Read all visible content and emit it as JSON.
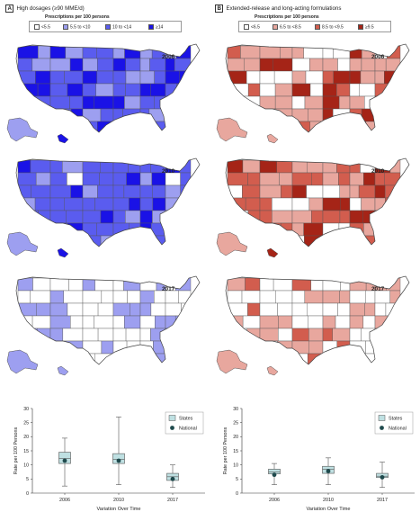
{
  "chart_data": [
    {
      "type": "choropleth-map + box",
      "panel_letter": "A",
      "title": "High dosages (≥90 MME/d)",
      "legend": {
        "title": "Prescriptions per 100 persons",
        "bins": [
          {
            "label": "<5.5",
            "color": "#ffffff"
          },
          {
            "label": "5.5 to <10",
            "color": "#9d9ff0"
          },
          {
            "label": "10 to <14",
            "color": "#5a5cef"
          },
          {
            "label": "≥14",
            "color": "#1a12e6"
          }
        ]
      },
      "maps": [
        {
          "year": "2006",
          "class_mix": [
            0.02,
            0.17,
            0.5,
            0.31
          ]
        },
        {
          "year": "2010",
          "class_mix": [
            0.02,
            0.17,
            0.56,
            0.25
          ]
        },
        {
          "year": "2017",
          "class_mix": [
            0.6,
            0.4,
            0.0,
            0.0
          ]
        }
      ],
      "boxplot": {
        "ylabel": "Rate per 100 Persons",
        "xlabel": "Variation Over Time",
        "categories": [
          "2006",
          "2010",
          "2017"
        ],
        "ylim": [
          0,
          30
        ],
        "yticks": [
          "0",
          "5",
          "10",
          "15",
          "20",
          "25",
          "30"
        ],
        "legend": [
          "States",
          "National"
        ],
        "states": [
          {
            "min": 2.5,
            "q1": 10.5,
            "median": 12.3,
            "q3": 14.5,
            "max": 19.5
          },
          {
            "min": 3.0,
            "q1": 10.5,
            "median": 12.0,
            "q3": 14.0,
            "max": 27.0
          },
          {
            "min": 2.0,
            "q1": 4.5,
            "median": 5.8,
            "q3": 7.0,
            "max": 10.0
          }
        ],
        "national": [
          11.5,
          11.5,
          5.0
        ]
      }
    },
    {
      "type": "choropleth-map + box",
      "panel_letter": "B",
      "title": "Extended-release and long-acting formulations",
      "legend": {
        "title": "Prescriptions per 100 persons",
        "bins": [
          {
            "label": "<6.5",
            "color": "#ffffff"
          },
          {
            "label": "6.5 to <8.5",
            "color": "#e8a79e"
          },
          {
            "label": "8.5 to <9.5",
            "color": "#d25d4e"
          },
          {
            "label": "≥9.5",
            "color": "#a52417"
          }
        ]
      },
      "maps": [
        {
          "year": "2006",
          "class_mix": [
            0.35,
            0.35,
            0.16,
            0.14
          ]
        },
        {
          "year": "2010",
          "class_mix": [
            0.1,
            0.28,
            0.3,
            0.32
          ]
        },
        {
          "year": "2017",
          "class_mix": [
            0.55,
            0.4,
            0.05,
            0.0
          ]
        }
      ],
      "boxplot": {
        "ylabel": "Rate per 100 Persons",
        "xlabel": "Variation Over Time",
        "categories": [
          "2006",
          "2010",
          "2017"
        ],
        "ylim": [
          0,
          30
        ],
        "yticks": [
          "0",
          "5",
          "10",
          "15",
          "20",
          "25",
          "30"
        ],
        "legend": [
          "States",
          "National"
        ],
        "states": [
          {
            "min": 3.0,
            "q1": 6.8,
            "median": 7.5,
            "q3": 8.5,
            "max": 10.5
          },
          {
            "min": 3.0,
            "q1": 7.0,
            "median": 8.5,
            "q3": 9.5,
            "max": 12.5
          },
          {
            "min": 2.0,
            "q1": 5.5,
            "median": 6.0,
            "q3": 7.0,
            "max": 11.0
          }
        ],
        "national": [
          6.5,
          7.8,
          5.6
        ]
      }
    }
  ]
}
